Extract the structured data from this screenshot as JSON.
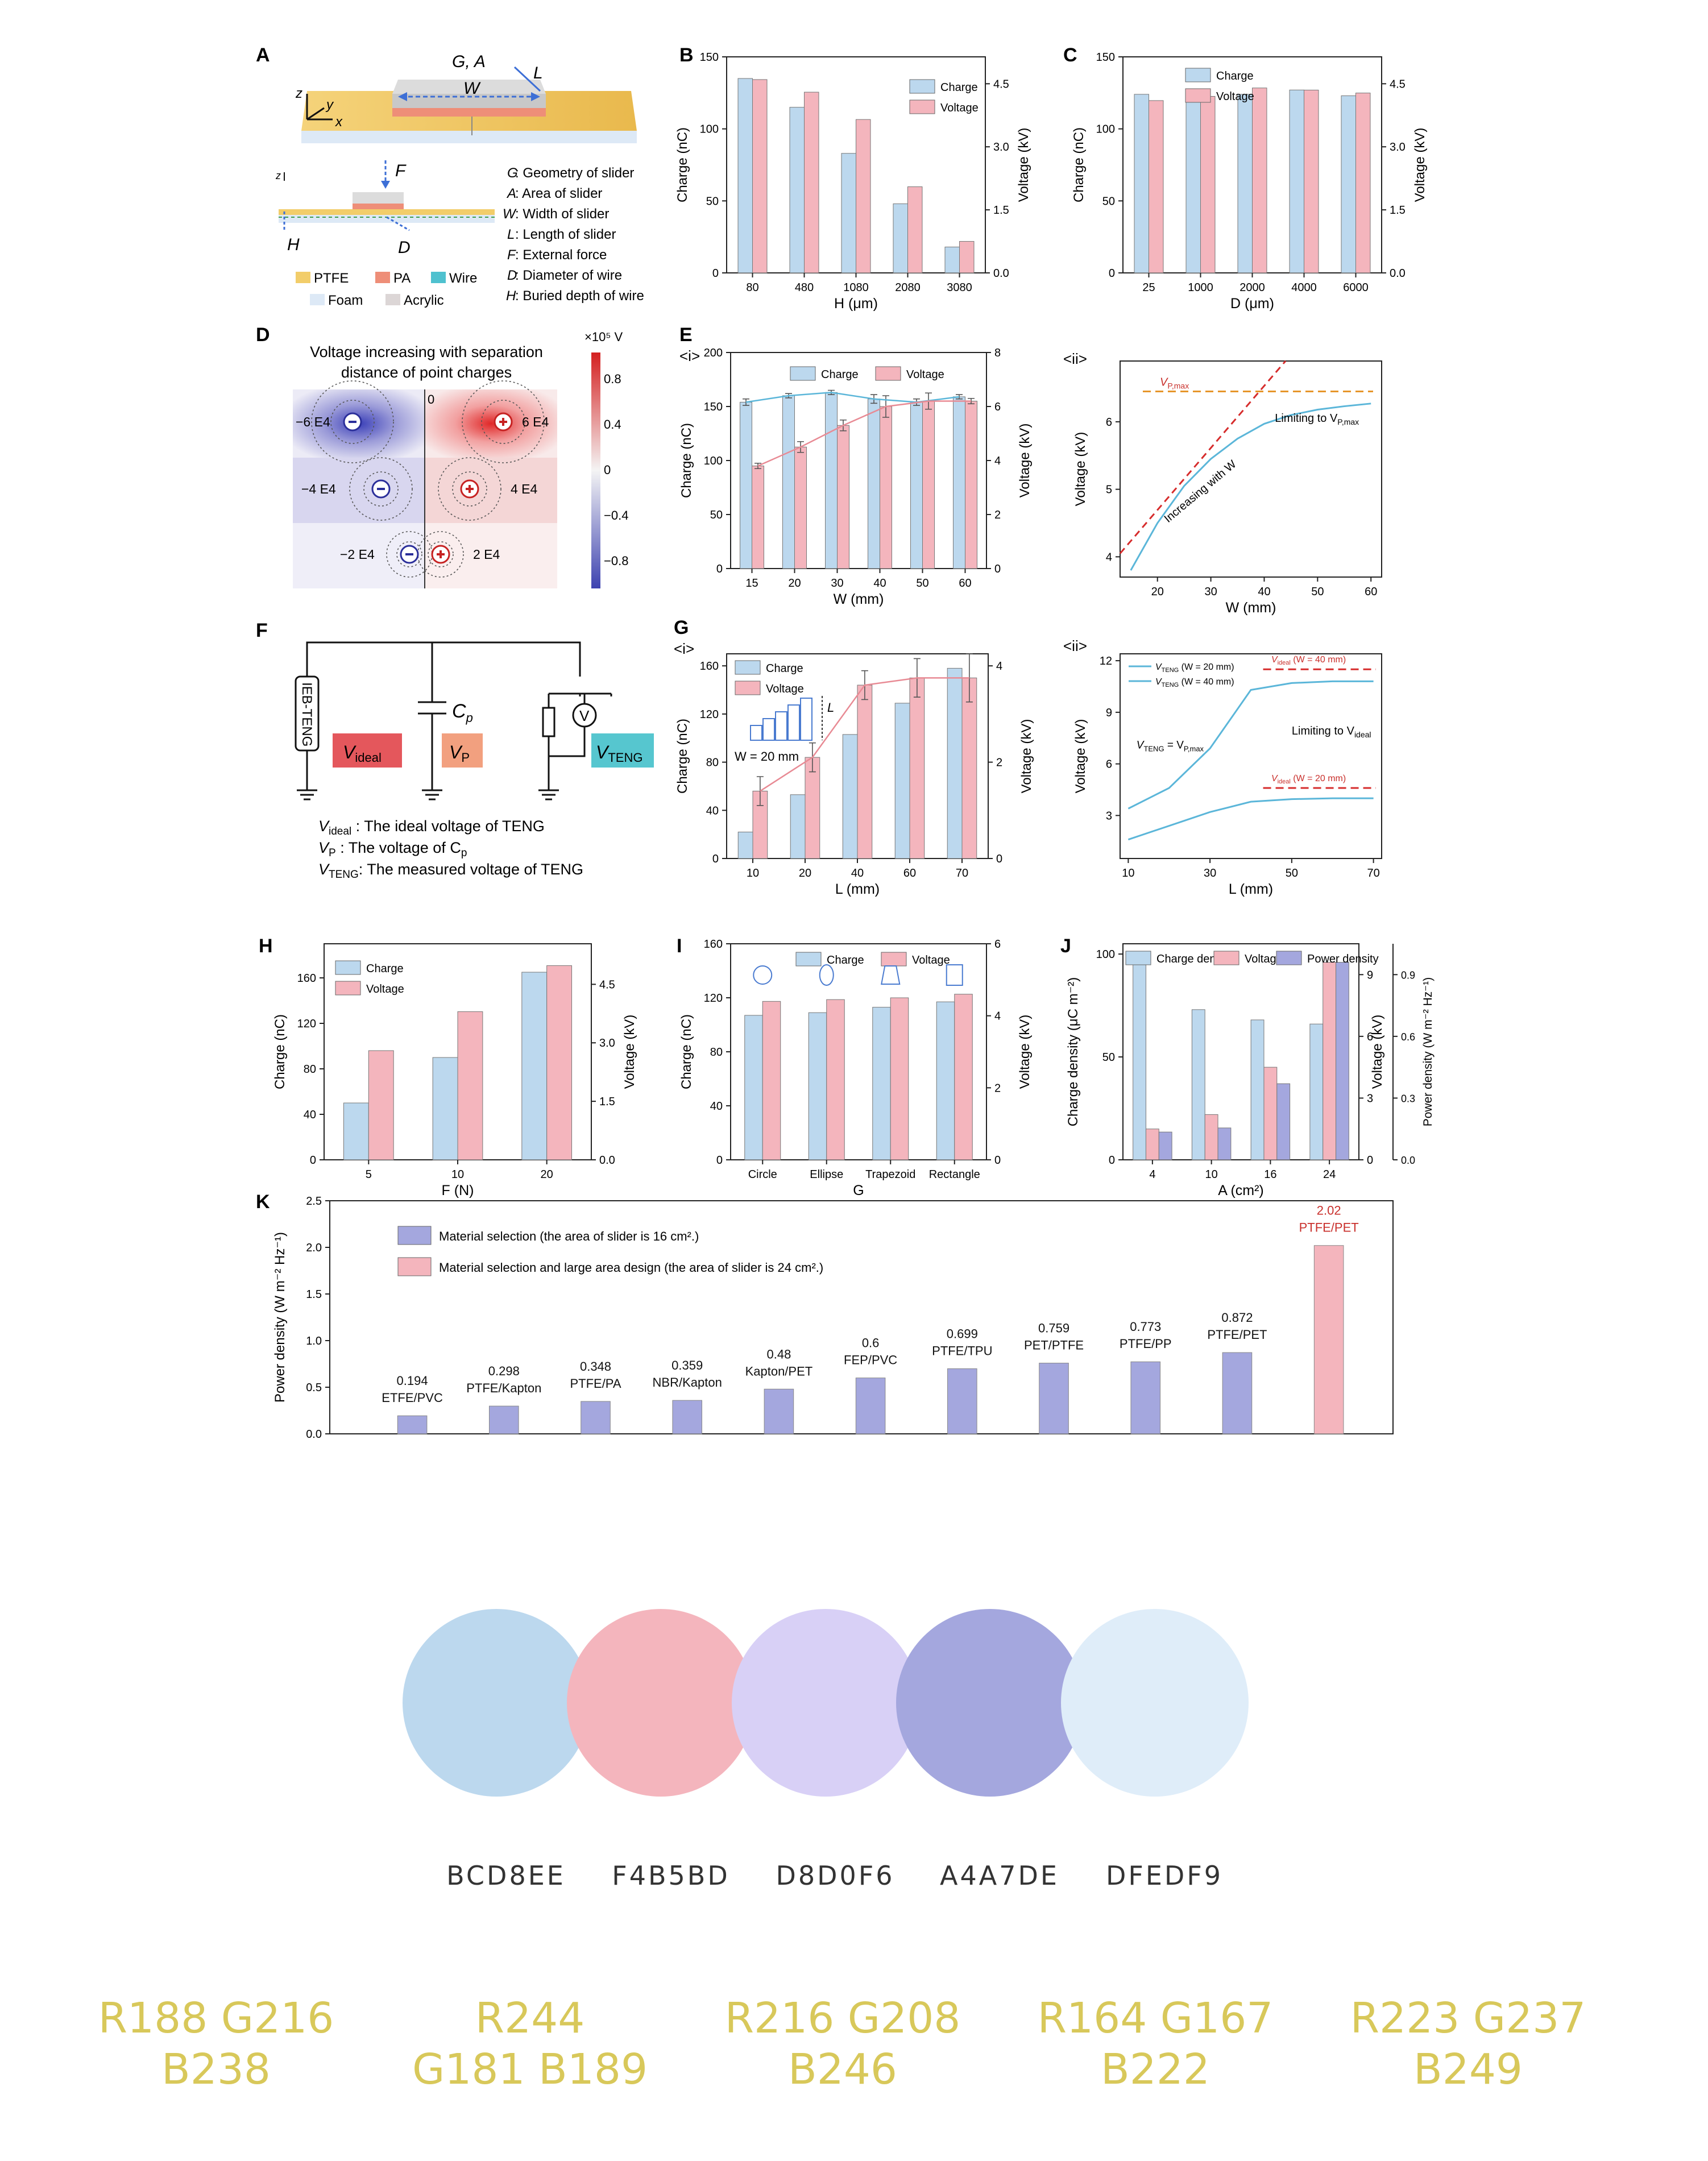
{
  "colors": {
    "blue": "#BCD8EE",
    "pink": "#F4B5BD",
    "lavender": "#D8D0F6",
    "purple": "#A4A7DE",
    "pale": "#DFEDF9",
    "orange": "#e6952a",
    "red": "#d62c2c",
    "line": "#5bb6d9",
    "redText": "#c9302c"
  },
  "panelA": {
    "label": "A",
    "top_labels": [
      "G, A",
      "L",
      "W"
    ],
    "axes": [
      "z",
      "y",
      "x"
    ],
    "side_labels": [
      "F",
      "H",
      "D"
    ],
    "definitions": [
      {
        "sym": "G",
        "text": ":  Geometry of slider"
      },
      {
        "sym": "A",
        "text": ":  Area of slider"
      },
      {
        "sym": "W",
        "text": ": Width of slider"
      },
      {
        "sym": "L",
        "text": ":  Length of slider"
      },
      {
        "sym": "F",
        "text": ":  External force"
      },
      {
        "sym": "D",
        "text": ":  Diameter of wire"
      },
      {
        "sym": "H",
        "text": ":  Buried depth of wire"
      }
    ],
    "legend": [
      "PTFE",
      "PA",
      "Wire",
      "Foam",
      "Acrylic"
    ]
  },
  "panelD": {
    "label": "D",
    "title1": "Voltage increasing with separation",
    "title2": "distance of point charges",
    "colorbar_unit": "×10⁵ V",
    "colorbar_ticks": [
      "0.8",
      "0.4",
      "0",
      "−0.4",
      "−0.8"
    ],
    "zero_label": "0",
    "contours": [
      "−6 E4",
      "6 E4",
      "−4 E4",
      "4 E4",
      "−2 E4",
      "2 E4"
    ]
  },
  "panelF": {
    "label": "F",
    "device": "IEB-TENG",
    "cap_label": "C",
    "cap_sub": "p",
    "meter": "V",
    "boxes": [
      {
        "main": "V",
        "sub": "ideal"
      },
      {
        "main": "V",
        "sub": "P"
      },
      {
        "main": "V",
        "sub": "TENG"
      }
    ],
    "notes": [
      {
        "main": "V",
        "sub": "ideal",
        "text": "  :   The ideal voltage of TENG"
      },
      {
        "main": "V",
        "sub": "P",
        "text": "        :   The voltage of C"
      },
      {
        "main": "V",
        "sub": "TENG",
        "text": ":  The measured voltage of TENG"
      }
    ],
    "note_tail_sub": "p"
  },
  "chart_data": [
    {
      "id": "B",
      "type": "bar",
      "categories": [
        "80",
        "480",
        "1080",
        "2080",
        "3080"
      ],
      "series": [
        {
          "name": "Charge",
          "axis": "left",
          "values": [
            135,
            115,
            83,
            48,
            18
          ]
        },
        {
          "name": "Voltage",
          "axis": "right",
          "values": [
            4.6,
            4.3,
            3.65,
            2.05,
            0.75
          ]
        }
      ],
      "xlabel": "H (μm)",
      "ylabel": "Charge (nC)",
      "y2label": "Voltage (kV)",
      "ylim": [
        0,
        150
      ],
      "yticks": [
        "0",
        "50",
        "100",
        "150"
      ],
      "y2lim": [
        0,
        5.14
      ],
      "y2ticks": [
        "0.0",
        "1.5",
        "3.0",
        "4.5"
      ]
    },
    {
      "id": "C",
      "type": "bar",
      "categories": [
        "25",
        "1000",
        "2000",
        "4000",
        "6000"
      ],
      "series": [
        {
          "name": "Charge",
          "axis": "left",
          "values": [
            124,
            125,
            124,
            127,
            123
          ]
        },
        {
          "name": "Voltage",
          "axis": "right",
          "values": [
            4.1,
            4.2,
            4.4,
            4.35,
            4.28
          ]
        }
      ],
      "xlabel": "D (μm)",
      "ylabel": "Charge (nC)",
      "y2label": "Voltage (kV)",
      "ylim": [
        0,
        150
      ],
      "yticks": [
        "0",
        "50",
        "100",
        "150"
      ],
      "y2lim": [
        0,
        5.14
      ],
      "y2ticks": [
        "0.0",
        "1.5",
        "3.0",
        "4.5"
      ]
    },
    {
      "id": "E",
      "sub": "<i>",
      "type": "bar",
      "categories": [
        "15",
        "20",
        "30",
        "40",
        "50",
        "60"
      ],
      "series": [
        {
          "name": "Charge",
          "axis": "left",
          "values": [
            154,
            160,
            163,
            157,
            154,
            159
          ],
          "errors": [
            3,
            2,
            2,
            4,
            3,
            2
          ],
          "line": true
        },
        {
          "name": "Voltage",
          "axis": "right",
          "values": [
            3.8,
            4.5,
            5.3,
            6.0,
            6.2,
            6.2
          ],
          "errors": [
            0.1,
            0.2,
            0.2,
            0.4,
            0.3,
            0.1
          ],
          "line": true
        }
      ],
      "xlabel": "W (mm)",
      "ylabel": "Charge (nC)",
      "y2label": "Voltage (kV)",
      "ylim": [
        0,
        200
      ],
      "yticks": [
        "0",
        "50",
        "100",
        "150",
        "200"
      ],
      "y2lim": [
        0,
        8
      ],
      "y2ticks": [
        "0",
        "2",
        "4",
        "6",
        "8"
      ]
    },
    {
      "id": "E2",
      "sub": "<ii>",
      "type": "line",
      "x": [
        15,
        20,
        25,
        30,
        35,
        40,
        45,
        50,
        55,
        60
      ],
      "series": [
        {
          "name": "Voltage",
          "values": [
            3.8,
            4.5,
            5.05,
            5.45,
            5.75,
            5.97,
            6.1,
            6.18,
            6.23,
            6.27
          ]
        }
      ],
      "xlabel": "W (mm)",
      "ylabel": "Voltage (kV)",
      "xlim": [
        13,
        62
      ],
      "xticks": [
        "20",
        "30",
        "40",
        "50",
        "60"
      ],
      "ylim": [
        3.7,
        6.9
      ],
      "yticks": [
        "4",
        "5",
        "6"
      ],
      "annotations": [
        "V",
        "P,max",
        "Limiting to V",
        "P,max",
        "Increasing with W"
      ],
      "vmax": 6.45
    },
    {
      "id": "G",
      "sub": "<i>",
      "type": "bar",
      "categories": [
        "10",
        "20",
        "40",
        "60",
        "70"
      ],
      "series": [
        {
          "name": "Charge",
          "axis": "left",
          "values": [
            22,
            53,
            103,
            129,
            158
          ]
        },
        {
          "name": "Voltage",
          "axis": "right",
          "values": [
            1.4,
            2.1,
            3.6,
            3.75,
            3.75
          ],
          "errors": [
            0.3,
            0.3,
            0.3,
            0.4,
            0.5
          ],
          "line": true
        }
      ],
      "xlabel": "L (mm)",
      "ylabel": "Charge (nC)",
      "y2label": "Voltage (kV)",
      "ylim": [
        0,
        170
      ],
      "yticks": [
        "0",
        "40",
        "80",
        "120",
        "160"
      ],
      "y2lim": [
        0,
        4.25
      ],
      "y2ticks": [
        "0",
        "2",
        "4"
      ],
      "inset": [
        "L",
        "W = 20 mm"
      ]
    },
    {
      "id": "G2",
      "sub": "<ii>",
      "type": "line",
      "x": [
        10,
        20,
        30,
        40,
        50,
        60,
        70
      ],
      "series": [
        {
          "name": "VTENG (W = 20 mm)",
          "values": [
            1.6,
            2.4,
            3.2,
            3.8,
            3.95,
            4.0,
            4.0
          ]
        },
        {
          "name": "VTENG (W = 40 mm)",
          "values": [
            3.4,
            4.6,
            6.9,
            10.3,
            10.7,
            10.8,
            10.8
          ]
        }
      ],
      "legend": [
        {
          "main": "V",
          "sub": "TENG",
          "text": " (W = 20 mm)"
        },
        {
          "main": "V",
          "sub": "TENG",
          "text": " (W = 40 mm)"
        }
      ],
      "refs": [
        {
          "value": 11.5,
          "main": "V",
          "sub": "ideal",
          "text": " (W = 40 mm)"
        },
        {
          "value": 4.6,
          "main": "V",
          "sub": "ideal",
          "text": " (W = 20 mm)"
        }
      ],
      "annotations": [
        "Limiting to V",
        "ideal",
        "V",
        "TENG",
        " = V",
        "P,max"
      ],
      "xlabel": "L (mm)",
      "ylabel": "Voltage (kV)",
      "xlim": [
        8,
        72
      ],
      "xticks": [
        "10",
        "30",
        "50",
        "70"
      ],
      "ylim": [
        0.5,
        12.4
      ],
      "yticks": [
        "3",
        "6",
        "9",
        "12"
      ]
    },
    {
      "id": "H",
      "type": "bar",
      "categories": [
        "5",
        "10",
        "20"
      ],
      "series": [
        {
          "name": "Charge",
          "axis": "left",
          "values": [
            50,
            90,
            165
          ]
        },
        {
          "name": "Voltage",
          "axis": "right",
          "values": [
            2.8,
            3.8,
            4.98
          ]
        }
      ],
      "xlabel": "F (N)",
      "ylabel": "Charge (nC)",
      "y2label": "Voltage (kV)",
      "ylim": [
        0,
        190
      ],
      "yticks": [
        "0",
        "40",
        "80",
        "120",
        "160"
      ],
      "y2lim": [
        0,
        5.54
      ],
      "y2ticks": [
        "0.0",
        "1.5",
        "3.0",
        "4.5"
      ]
    },
    {
      "id": "I",
      "type": "bar",
      "categories": [
        "Circle",
        "Ellipse",
        "Trapezoid",
        "Rectangle"
      ],
      "series": [
        {
          "name": "Charge",
          "axis": "left",
          "values": [
            107,
            109,
            113,
            117
          ]
        },
        {
          "name": "Voltage",
          "axis": "right",
          "values": [
            4.4,
            4.45,
            4.5,
            4.6
          ]
        }
      ],
      "xlabel": "G",
      "ylabel": "Charge (nC)",
      "y2label": "Voltage (kV)",
      "ylim": [
        0,
        160
      ],
      "yticks": [
        "0",
        "40",
        "80",
        "120",
        "160"
      ],
      "y2lim": [
        0,
        6
      ],
      "y2ticks": [
        "0",
        "2",
        "4",
        "6"
      ]
    },
    {
      "id": "J",
      "type": "bar",
      "categories": [
        "4",
        "10",
        "16",
        "24"
      ],
      "series": [
        {
          "name": "Charge density",
          "axis": "left",
          "values": [
            96,
            73,
            68,
            66
          ]
        },
        {
          "name": "Voltage",
          "axis": "right",
          "values": [
            1.5,
            2.2,
            4.5,
            9.6
          ]
        },
        {
          "name": "Power density",
          "axis": "right2",
          "values": [
            0.135,
            0.155,
            0.37,
            0.96
          ]
        }
      ],
      "xlabel": "A (cm²)",
      "ylabel": "Charge density (μC m⁻²)",
      "y2label": "Voltage (kV)",
      "y3label": "Power density (W m⁻² Hz⁻¹)",
      "ylim": [
        0,
        105
      ],
      "yticks": [
        "0",
        "50",
        "100"
      ],
      "y2lim": [
        0,
        10.5
      ],
      "y2ticks": [
        "0",
        "3",
        "6",
        "9"
      ],
      "y3lim": [
        0,
        1.05
      ],
      "y3ticks": [
        "0.0",
        "0.3",
        "0.6",
        "0.9"
      ]
    },
    {
      "id": "K",
      "type": "bar",
      "categories": [
        "ETFE/PVC",
        "PTFE/Kapton",
        "PTFE/PA",
        "NBR/Kapton",
        "Kapton/PET",
        "FEP/PVC",
        "PTFE/TPU",
        "PET/PTFE",
        "PTFE/PP",
        "PTFE/PET",
        "PTFE/PET"
      ],
      "values": [
        0.194,
        0.298,
        0.348,
        0.359,
        0.48,
        0.6,
        0.699,
        0.759,
        0.773,
        0.872,
        2.02
      ],
      "value_labels": [
        "0.194",
        "0.298",
        "0.348",
        "0.359",
        "0.48",
        "0.6",
        "0.699",
        "0.759",
        "0.773",
        "0.872",
        "2.02"
      ],
      "groups": [
        "purple",
        "purple",
        "purple",
        "purple",
        "purple",
        "purple",
        "purple",
        "purple",
        "purple",
        "purple",
        "pink"
      ],
      "legend": [
        "Material selection (the area of slider is 16 cm².)",
        "Material selection and large area design (the area of slider is 24 cm².)"
      ],
      "ylabel": "Power density (W m⁻² Hz⁻¹)",
      "ylim": [
        0,
        2.5
      ],
      "yticks": [
        "0.0",
        "0.5",
        "1.0",
        "1.5",
        "2.0",
        "2.5"
      ]
    }
  ],
  "palette": [
    {
      "hex": "BCD8EE",
      "rgb_line1": "R188 G216",
      "rgb_line2": "B238",
      "color": "#BCD8EE"
    },
    {
      "hex": "F4B5BD",
      "rgb_line1": "R244",
      "rgb_line2": "G181 B189",
      "color": "#F4B5BD"
    },
    {
      "hex": "D8D0F6",
      "rgb_line1": "R216 G208",
      "rgb_line2": "B246",
      "color": "#D8D0F6"
    },
    {
      "hex": "A4A7DE",
      "rgb_line1": "R164 G167",
      "rgb_line2": "B222",
      "color": "#A4A7DE"
    },
    {
      "hex": "DFEDF9",
      "rgb_line1": "R223 G237",
      "rgb_line2": "B249",
      "color": "#DFEDF9"
    }
  ]
}
